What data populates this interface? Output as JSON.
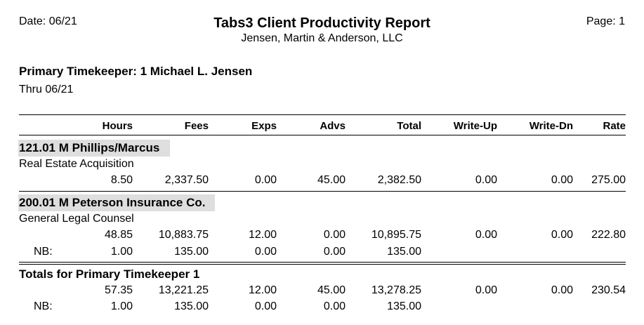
{
  "header": {
    "date": "Date: 06/21",
    "title": "Tabs3 Client Productivity Report",
    "firm": "Jensen, Martin & Anderson, LLC",
    "page": "Page: 1"
  },
  "timekeeper": {
    "line": "Primary Timekeeper:  1 Michael L. Jensen",
    "thru": "Thru 06/21"
  },
  "columns": [
    "Hours",
    "Fees",
    "Exps",
    "Advs",
    "Total",
    "Write-Up",
    "Write-Dn",
    "Rate"
  ],
  "clients": [
    {
      "name": "121.01 M Phillips/Marcus",
      "matter": "Real Estate Acquisition",
      "row": [
        "8.50",
        "2,337.50",
        "0.00",
        "45.00",
        "2,382.50",
        "0.00",
        "0.00",
        "275.00"
      ]
    },
    {
      "name": "200.01 M Peterson Insurance Co.",
      "matter": "General Legal Counsel",
      "row": [
        "48.85",
        "10,883.75",
        "12.00",
        "0.00",
        "10,895.75",
        "0.00",
        "0.00",
        "222.80"
      ],
      "nb_label": "NB:",
      "nb_row": [
        "1.00",
        "135.00",
        "0.00",
        "0.00",
        "135.00"
      ]
    }
  ],
  "totals": {
    "title": "Totals for Primary Timekeeper 1",
    "row": [
      "57.35",
      "13,221.25",
      "12.00",
      "45.00",
      "13,278.25",
      "0.00",
      "0.00",
      "230.54"
    ],
    "nb_label": "NB:",
    "nb_row": [
      "1.00",
      "135.00",
      "0.00",
      "0.00",
      "135.00"
    ]
  }
}
